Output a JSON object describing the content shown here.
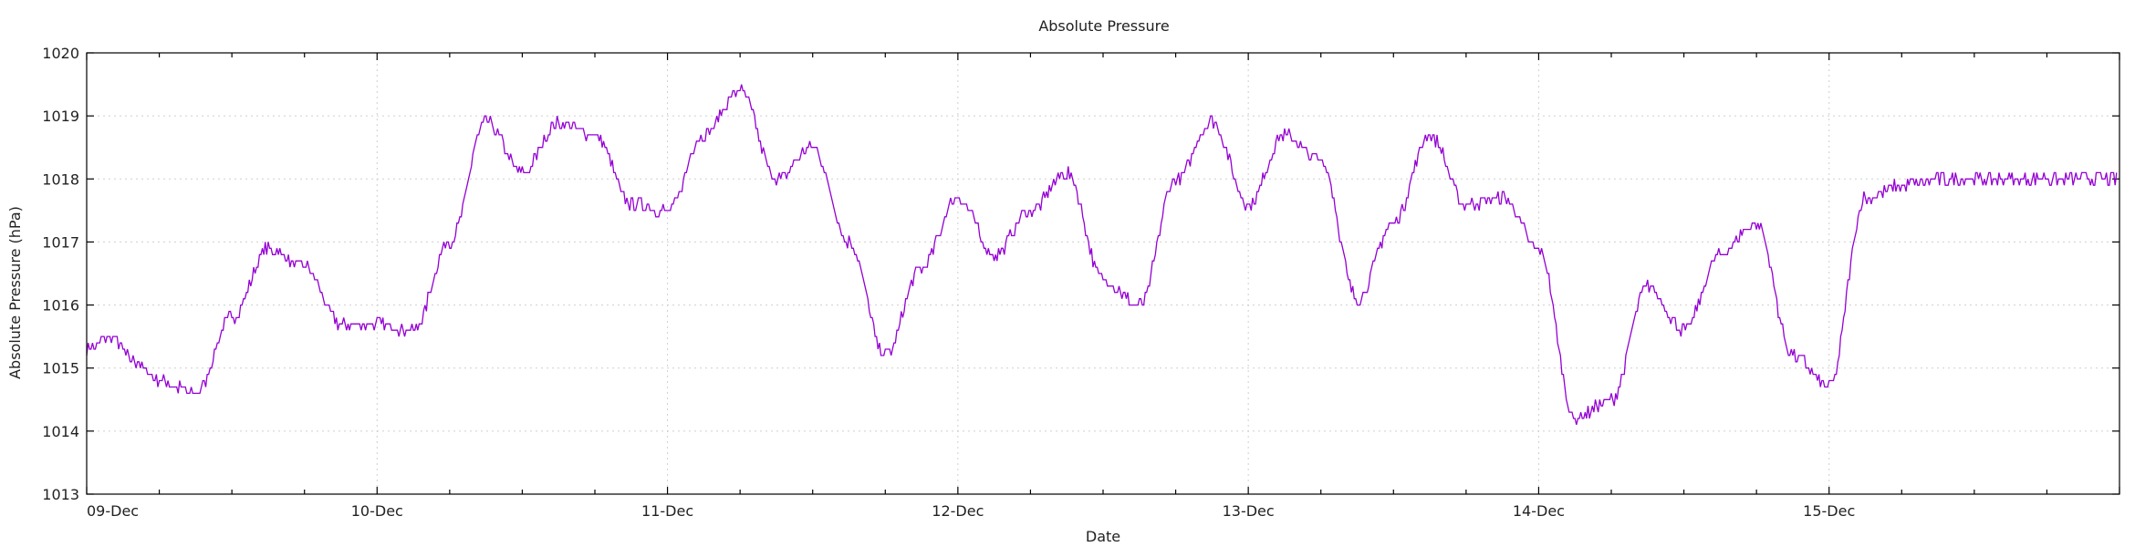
{
  "chart_data": {
    "type": "line",
    "title": "Absolute Pressure",
    "xlabel": "Date",
    "ylabel": "Absolute Pressure (hPa)",
    "x_ticks": [
      "09-Dec",
      "10-Dec",
      "11-Dec",
      "12-Dec",
      "13-Dec",
      "14-Dec",
      "15-Dec"
    ],
    "x_range_days": [
      0,
      7
    ],
    "ylim": [
      1013,
      1020
    ],
    "y_ticks": [
      1013,
      1014,
      1015,
      1016,
      1017,
      1018,
      1019,
      1020
    ],
    "grid": true,
    "line_color": "#9400d3",
    "series": [
      {
        "x_hours": [
          0,
          2,
          4,
          6,
          9,
          12,
          15,
          18,
          21,
          24,
          27,
          30,
          33,
          36,
          39,
          42,
          45,
          48,
          51,
          54,
          57,
          60,
          63,
          66,
          69,
          72,
          75,
          78,
          81,
          84,
          87,
          90,
          93,
          96,
          99,
          102,
          105,
          108,
          111,
          114,
          117,
          120,
          123,
          126,
          129,
          132,
          135,
          138,
          141,
          144,
          147,
          150,
          153,
          156,
          159,
          162,
          165,
          168
        ],
        "values": [
          1015.3,
          1015.5,
          1015.1,
          1014.8,
          1014.6,
          1015.8,
          1016.9,
          1016.6,
          1015.7,
          1015.7,
          1015.6,
          1017.0,
          1018.9,
          1018.1,
          1018.9,
          1018.7,
          1017.6,
          1017.5,
          1018.7,
          1019.4,
          1018.0,
          1018.5,
          1017.0,
          1015.2,
          1016.6,
          1017.7,
          1016.8,
          1017.5,
          1018.1,
          1016.4,
          1016.0,
          1018.0,
          1018.9,
          1017.6,
          1018.7,
          1018.3,
          1016.1,
          1017.3,
          1018.7,
          1017.6,
          1017.7,
          1016.9,
          1014.2,
          1014.5,
          1016.3,
          1015.6,
          1016.8,
          1017.3,
          1015.2,
          1014.7,
          1017.7,
          1017.9,
          1018.0,
          1018.0,
          1018.0,
          1018.0,
          1018.0,
          1018.0
        ]
      }
    ]
  }
}
